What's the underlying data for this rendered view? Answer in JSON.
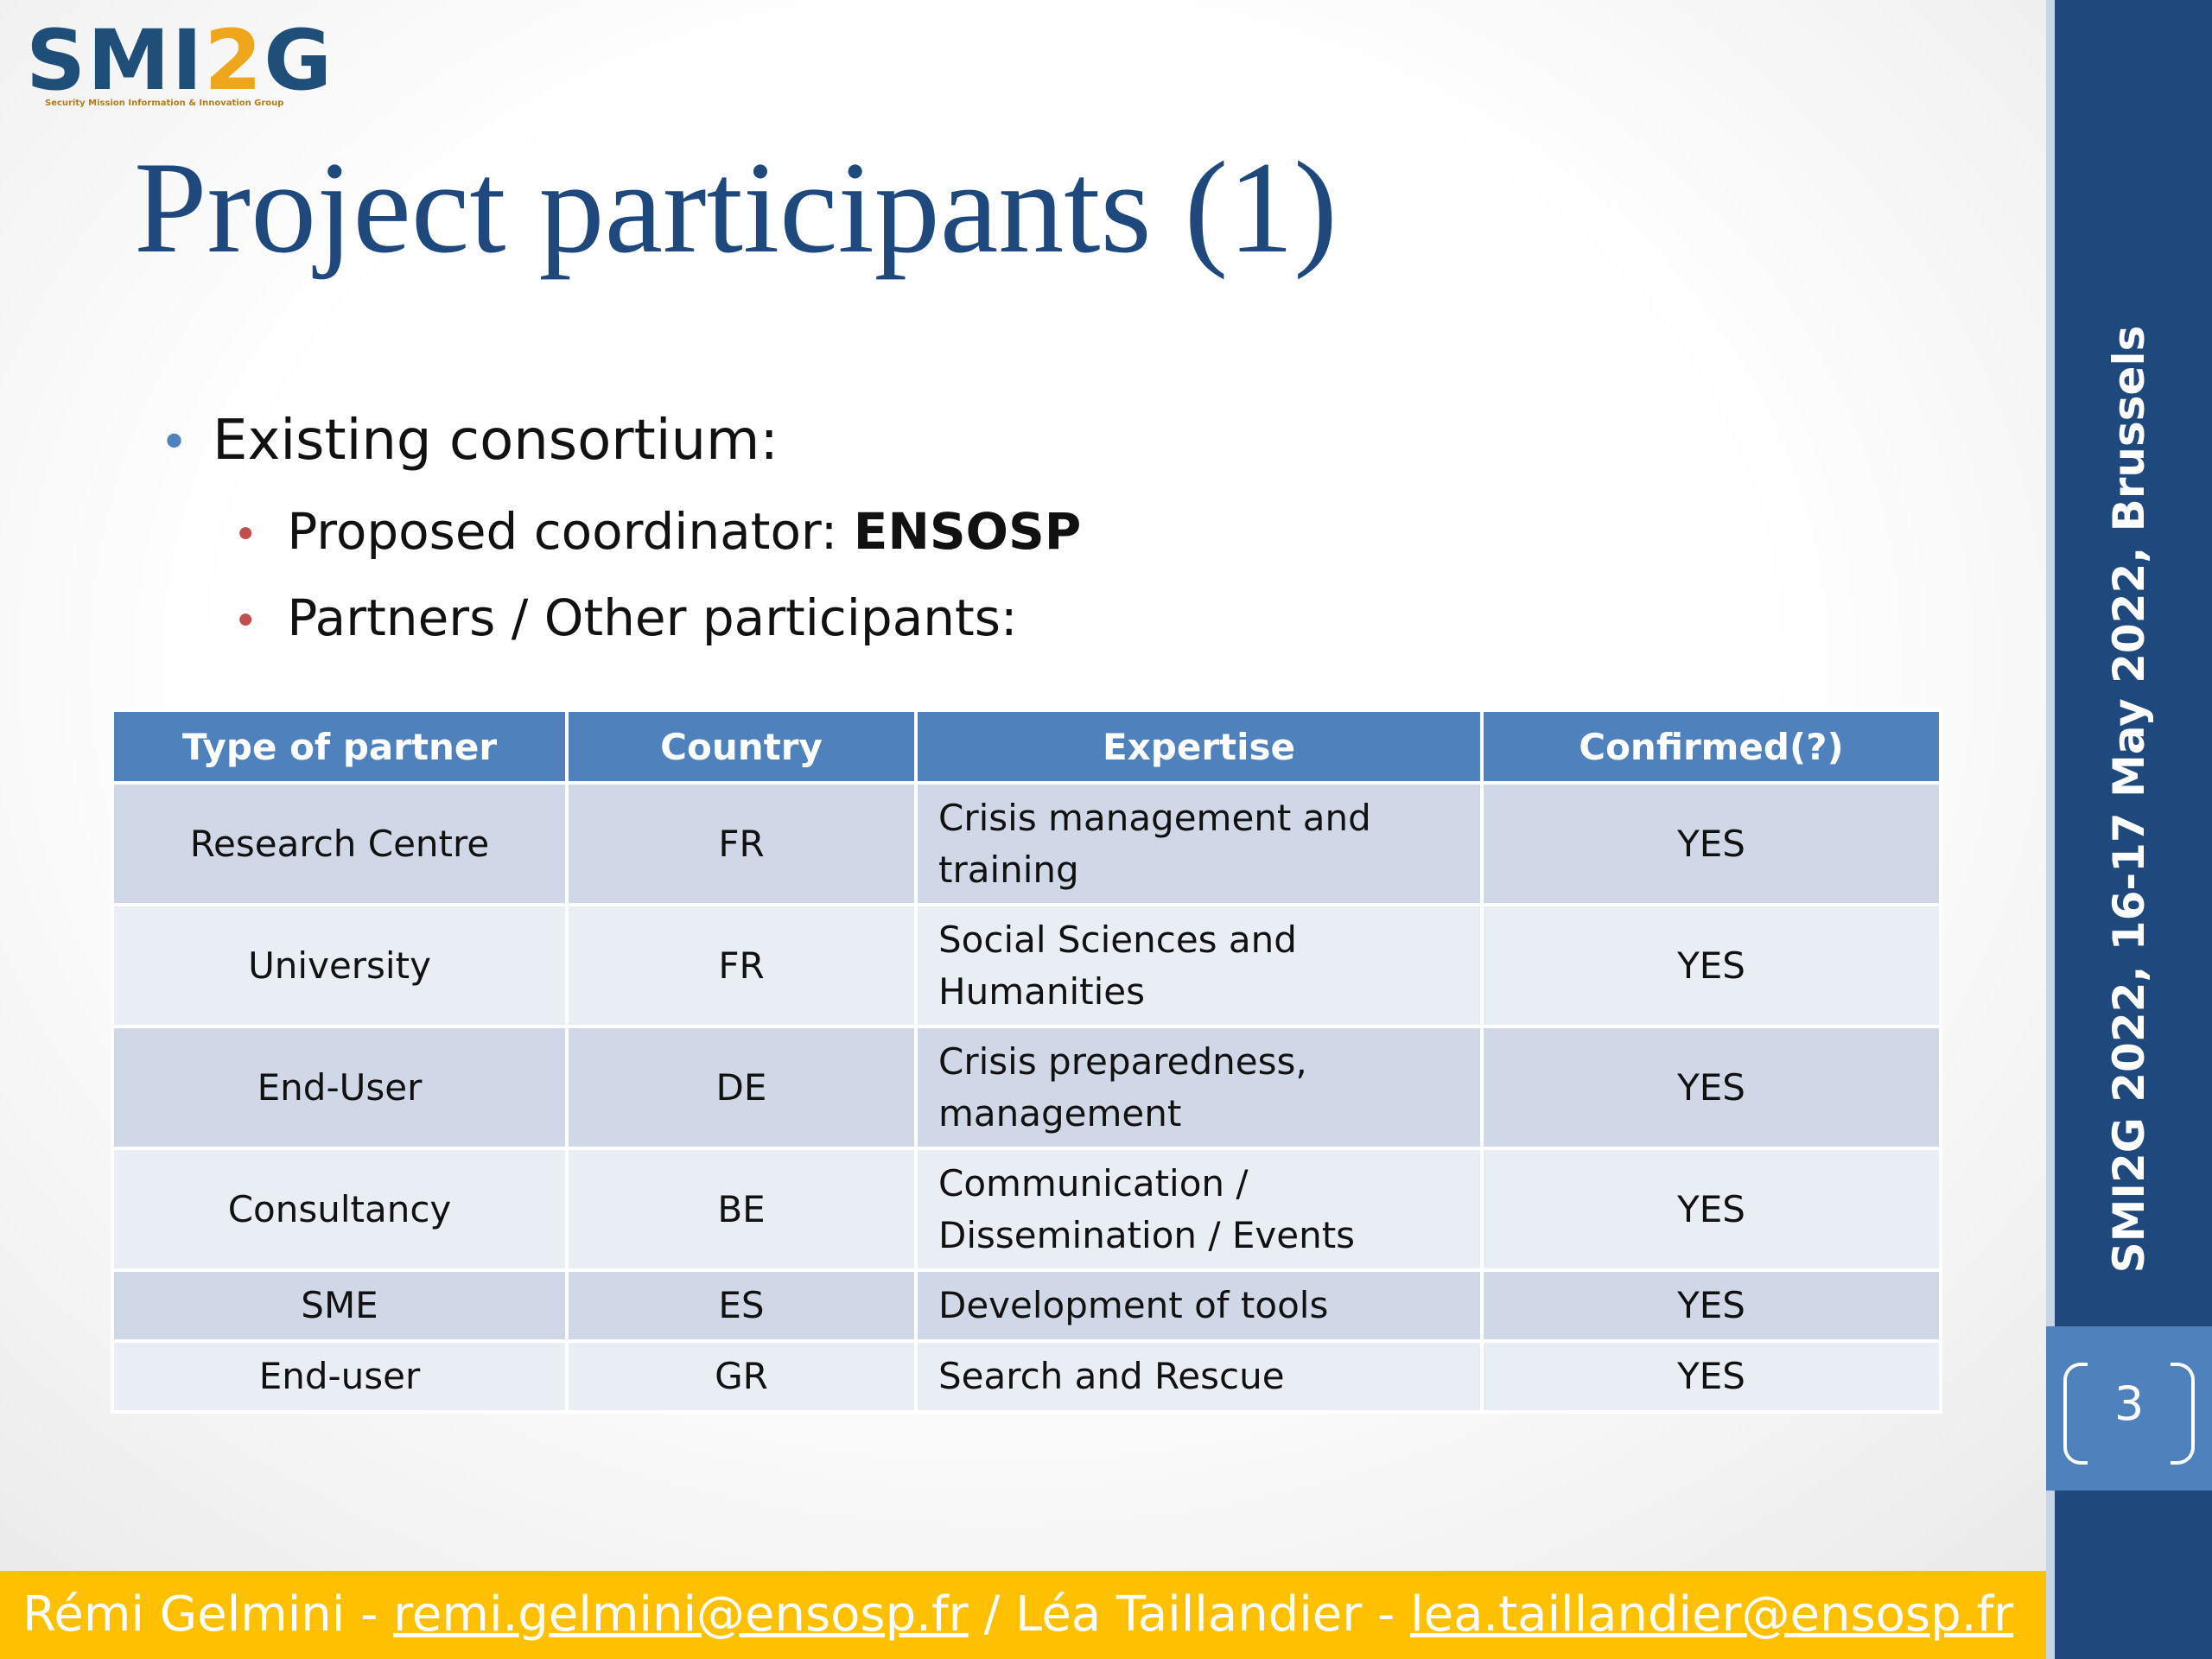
{
  "logo": {
    "text_main": "SMI",
    "text_two": "2",
    "text_end": "G",
    "subtitle": "Security Mission Information & Innovation Group"
  },
  "title": "Project participants (1)",
  "bullets": {
    "level1": "Existing consortium:",
    "coordinator_prefix": "Proposed coordinator: ",
    "coordinator_name": "ENSOSP",
    "partners": "Partners / Other participants:"
  },
  "table": {
    "headers": [
      "Type of partner",
      "Country",
      "Expertise",
      "Confirmed(?)"
    ],
    "rows": [
      {
        "type": "Research Centre",
        "country": "FR",
        "expertise": "Crisis management and training",
        "confirmed": "YES"
      },
      {
        "type": "University",
        "country": "FR",
        "expertise": "Social Sciences and Humanities",
        "confirmed": "YES"
      },
      {
        "type": "End-User",
        "country": "DE",
        "expertise": "Crisis preparedness, management",
        "confirmed": "YES"
      },
      {
        "type": "Consultancy",
        "country": "BE",
        "expertise": "Communication / Dissemination / Events",
        "confirmed": "YES"
      },
      {
        "type": "SME",
        "country": "ES",
        "expertise": "Development of tools",
        "confirmed": "YES"
      },
      {
        "type": "End-user",
        "country": "GR",
        "expertise": "Search and Rescue",
        "confirmed": "YES"
      }
    ]
  },
  "sidebar": {
    "event": "SMI2G 2022,  16-17 May 2022, Brussels",
    "page_number": "3"
  },
  "footer": {
    "name1": "Rémi Gelmini - ",
    "email1": "remi.gelmini@ensosp.fr",
    "separator": " / ",
    "name2": "Léa Taillandier - ",
    "email2": "lea.taillandier@ensosp.fr"
  },
  "colors": {
    "title": "#1f497d",
    "header_fill": "#4f81bd",
    "row_odd": "#d0d8e8",
    "row_even": "#e9edf4",
    "sidebar": "#1f497d",
    "footer": "#ffc000"
  }
}
